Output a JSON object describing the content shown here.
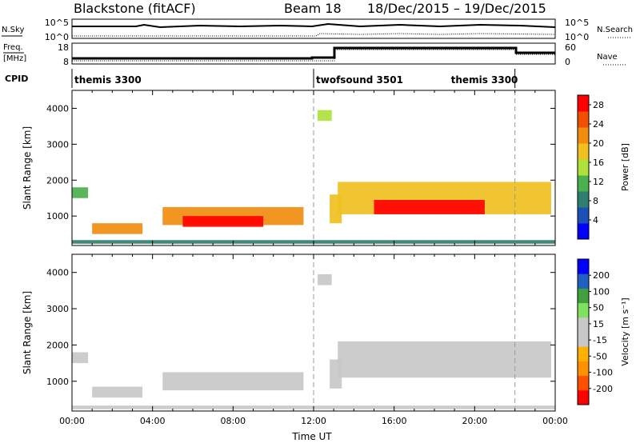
{
  "header": {
    "station": "Blackstone (fitACF)",
    "beam": "Beam 18",
    "date_range": "18/Dec/2015 – 19/Dec/2015"
  },
  "side_labels": {
    "nsky": "N.Sky",
    "nsearch": "N.Search",
    "freq": "Freq.",
    "freq_unit": "[MHz]",
    "nave": "Nave",
    "cpid": "CPID"
  },
  "noise_panel": {
    "left_ticks": [
      "10^5",
      "10^0"
    ],
    "right_ticks": [
      "10^5",
      "10^0"
    ]
  },
  "freq_panel": {
    "left_ticks": [
      "18",
      "8"
    ],
    "right_ticks": [
      "60",
      "0"
    ]
  },
  "cpid_segments": [
    {
      "label": "themis 3300",
      "start_hour": 0,
      "end_hour": 12
    },
    {
      "label": "twofsound 3501",
      "start_hour": 12,
      "end_hour": 22
    },
    {
      "label": "themis 3300",
      "start_hour": 22,
      "end_hour": 24
    }
  ],
  "colors": {
    "power": [
      "#0000ff",
      "#1c50b4",
      "#2f7f6e",
      "#4cb04c",
      "#aee23a",
      "#f0c020",
      "#f08c10",
      "#f05000",
      "#ff0000"
    ],
    "velocity": [
      "#ff0000",
      "#ff5000",
      "#ff9000",
      "#ffb000",
      "#c8c8c8",
      "#c8c8c8",
      "#80e060",
      "#40a040",
      "#2060c0",
      "#0000ff"
    ]
  },
  "chart_data": [
    {
      "type": "heatmap",
      "name": "power",
      "xlabel": "",
      "ylabel": "Slant Range [km]",
      "x_unit": "hours UT from 18/Dec/2015 00:00",
      "xlim": [
        0,
        24
      ],
      "ylim": [
        180,
        4500
      ],
      "yticks": [
        "1000",
        "2000",
        "3000",
        "4000"
      ],
      "colorbar": {
        "label": "Power [dB]",
        "ticks": [
          "4",
          "8",
          "12",
          "16",
          "20",
          "24",
          "28"
        ],
        "range": [
          0,
          30
        ]
      },
      "regions": [
        {
          "t_start": 0.0,
          "t_end": 0.8,
          "r_center": 1650,
          "r_width": 300,
          "value": 10
        },
        {
          "t_start": 1.0,
          "t_end": 3.5,
          "r_center": 650,
          "r_width": 300,
          "value": 20
        },
        {
          "t_start": 4.5,
          "t_end": 11.5,
          "r_center": 1000,
          "r_width": 500,
          "value": 22
        },
        {
          "t_start": 5.5,
          "t_end": 9.5,
          "r_center": 850,
          "r_width": 300,
          "value": 27
        },
        {
          "t_start": 12.8,
          "t_end": 13.4,
          "r_center": 1200,
          "r_width": 800,
          "value": 18
        },
        {
          "t_start": 13.2,
          "t_end": 23.8,
          "r_center": 1500,
          "r_width": 900,
          "value": 19
        },
        {
          "t_start": 15.0,
          "t_end": 20.5,
          "r_center": 1250,
          "r_width": 400,
          "value": 27
        },
        {
          "t_start": 12.2,
          "t_end": 12.9,
          "r_center": 3800,
          "r_width": 300,
          "value": 14
        },
        {
          "t_start": 0.0,
          "t_end": 24.0,
          "r_center": 280,
          "r_width": 100,
          "value": 8
        }
      ]
    },
    {
      "type": "heatmap",
      "name": "velocity",
      "xlabel": "Time UT",
      "ylabel": "Slant Range [km]",
      "x_unit": "hours UT from 18/Dec/2015 00:00",
      "xlim": [
        0,
        24
      ],
      "ylim": [
        180,
        4500
      ],
      "xticks": [
        "00:00",
        "04:00",
        "08:00",
        "12:00",
        "16:00",
        "20:00",
        "00:00"
      ],
      "yticks": [
        "1000",
        "2000",
        "3000",
        "4000"
      ],
      "colorbar": {
        "label": "Velocity [m s⁻¹]",
        "ticks": [
          "200",
          "100",
          "50",
          "15",
          "-15",
          "-50",
          "-100",
          "-200"
        ],
        "range": [
          -250,
          250
        ]
      },
      "regions": [
        {
          "t_start": 0.0,
          "t_end": 0.8,
          "r_center": 1650,
          "r_width": 300,
          "value": 0
        },
        {
          "t_start": 1.0,
          "t_end": 3.5,
          "r_center": 700,
          "r_width": 300,
          "value": 0
        },
        {
          "t_start": 4.5,
          "t_end": 11.5,
          "r_center": 1000,
          "r_width": 500,
          "value": -40
        },
        {
          "t_start": 12.8,
          "t_end": 13.4,
          "r_center": 1200,
          "r_width": 800,
          "value": 0
        },
        {
          "t_start": 13.2,
          "t_end": 23.8,
          "r_center": 1600,
          "r_width": 1000,
          "value": 0
        },
        {
          "t_start": 12.2,
          "t_end": 12.9,
          "r_center": 3800,
          "r_width": 300,
          "value": 0
        },
        {
          "t_start": 0.0,
          "t_end": 24.0,
          "r_center": 280,
          "r_width": 100,
          "value": -40
        }
      ]
    }
  ]
}
